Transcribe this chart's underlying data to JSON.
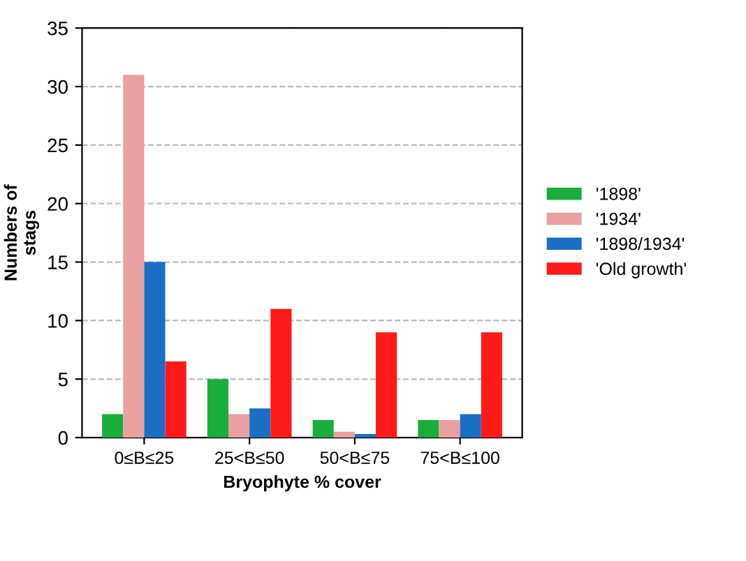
{
  "chart_data": {
    "type": "bar",
    "xlabel": "Bryophyte % cover",
    "ylabel": "Numbers of\nstags",
    "categories": [
      "0≤B≤25",
      "25<B≤50",
      "50<B≤75",
      "75<B≤100"
    ],
    "series": [
      {
        "name": "'1898'",
        "color": "#1aad3c",
        "values": [
          2,
          5,
          1.5,
          1.5
        ]
      },
      {
        "name": "'1934'",
        "color": "#e8a0a0",
        "values": [
          31,
          2,
          0.5,
          1.5
        ]
      },
      {
        "name": "'1898/1934'",
        "color": "#1a6fc4",
        "values": [
          15,
          2.5,
          0.3,
          2
        ]
      },
      {
        "name": "'Old growth'",
        "color": "#ff1a1a",
        "values": [
          6.5,
          11,
          9,
          9
        ]
      }
    ],
    "ylim": [
      0,
      35
    ],
    "yticks": [
      0,
      5,
      10,
      15,
      20,
      25,
      30,
      35
    ],
    "grid": "y",
    "legend": "right"
  }
}
